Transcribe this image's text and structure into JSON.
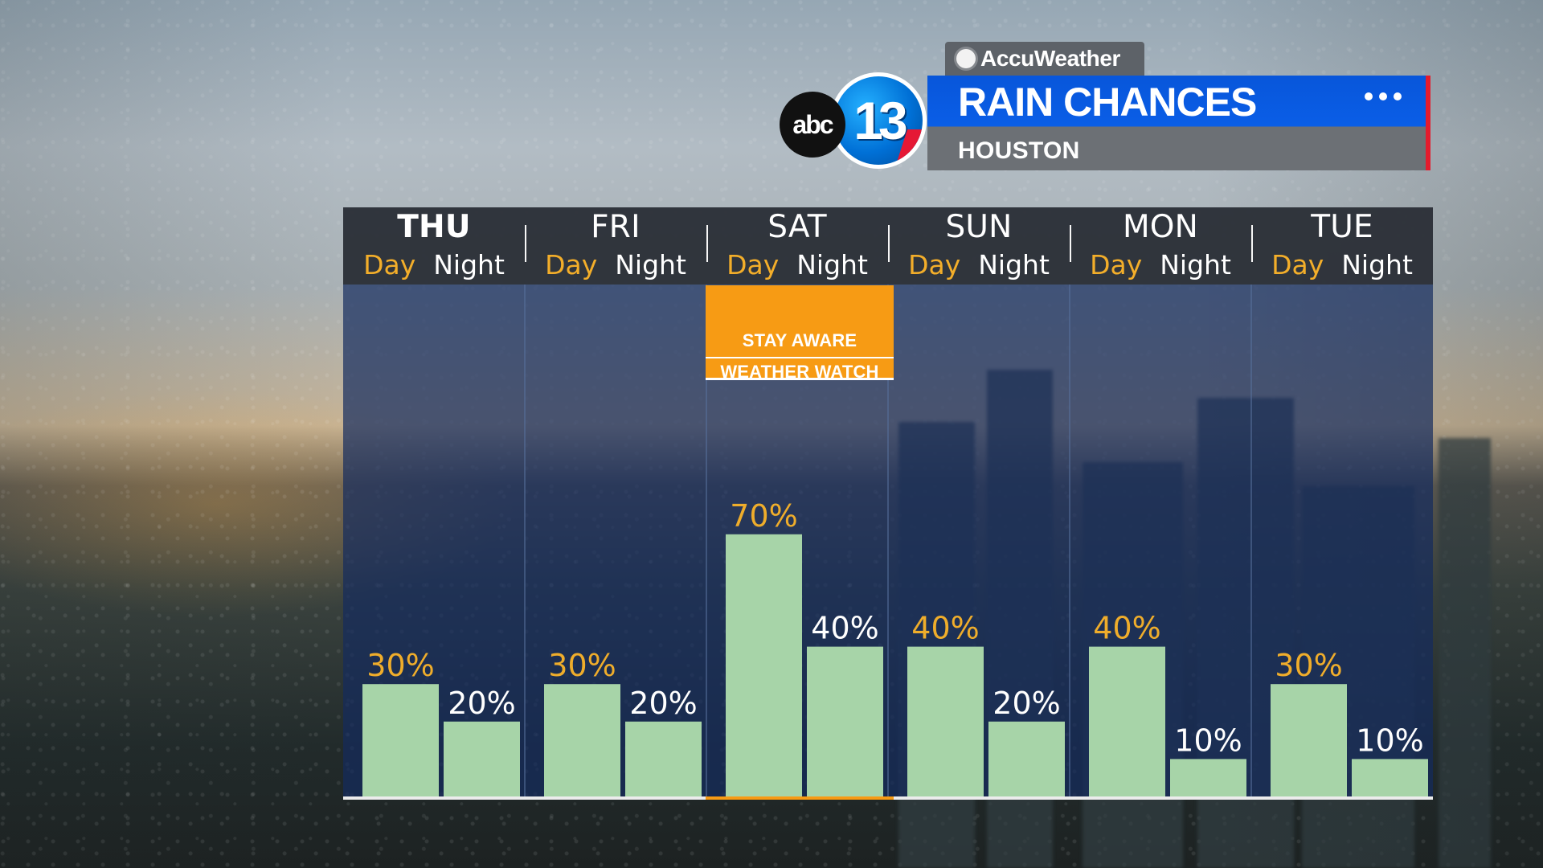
{
  "header": {
    "brand": "AccuWeather",
    "station_left": "abc",
    "station_right": "13",
    "title": "RAIN CHANCES",
    "subtitle": "HOUSTON",
    "menu_icon": "more-dots-icon"
  },
  "alert": {
    "line1": "STAY AWARE",
    "line2": "WEATHER WATCH",
    "day": "SAT",
    "color": "#f79b14"
  },
  "colors": {
    "chart_panel": "#142b5e",
    "bar": "#a7d4a8",
    "day_label": "#efad2b",
    "night_label": "#ffffff",
    "header_blue": "#0a5ee7",
    "accent_red": "#e41b2d"
  },
  "days": [
    {
      "name": "THU",
      "day_label": "Day",
      "night_label": "Night"
    },
    {
      "name": "FRI",
      "day_label": "Day",
      "night_label": "Night"
    },
    {
      "name": "SAT",
      "day_label": "Day",
      "night_label": "Night"
    },
    {
      "name": "SUN",
      "day_label": "Day",
      "night_label": "Night"
    },
    {
      "name": "MON",
      "day_label": "Day",
      "night_label": "Night"
    },
    {
      "name": "TUE",
      "day_label": "Day",
      "night_label": "Night"
    }
  ],
  "chart_data": {
    "type": "bar",
    "title": "RAIN CHANCES",
    "subtitle": "HOUSTON",
    "categories": [
      "THU",
      "FRI",
      "SAT",
      "SUN",
      "MON",
      "TUE"
    ],
    "ylim": [
      0,
      100
    ],
    "series": [
      {
        "name": "Day",
        "values": [
          30,
          30,
          70,
          40,
          40,
          30
        ]
      },
      {
        "name": "Night",
        "values": [
          20,
          20,
          40,
          20,
          10,
          10
        ]
      }
    ],
    "value_labels": [
      [
        "30%",
        "20%"
      ],
      [
        "30%",
        "20%"
      ],
      [
        "70%",
        "40%"
      ],
      [
        "40%",
        "20%"
      ],
      [
        "40%",
        "10%"
      ],
      [
        "30%",
        "10%"
      ]
    ]
  }
}
